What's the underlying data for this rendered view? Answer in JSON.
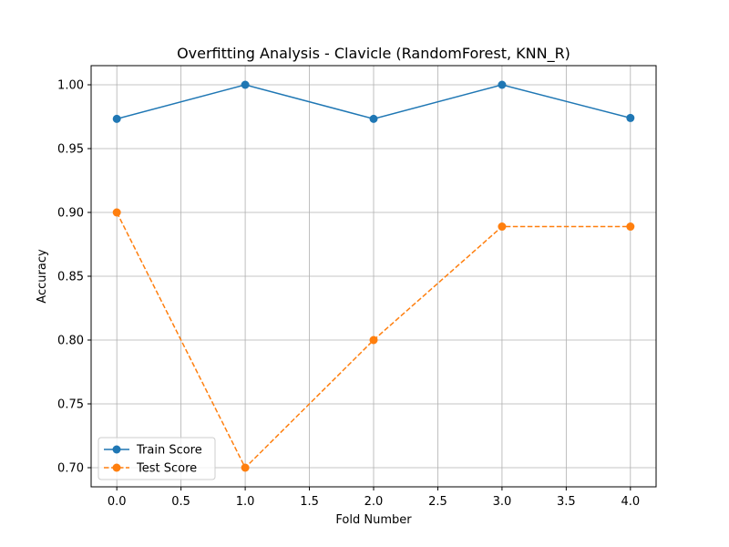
{
  "chart_data": {
    "type": "line",
    "title": "Overfitting Analysis - Clavicle (RandomForest, KNN_R)",
    "xlabel": "Fold Number",
    "ylabel": "Accuracy",
    "xlim": [
      -0.2,
      4.2
    ],
    "ylim": [
      0.685,
      1.015
    ],
    "x_ticks": [
      0.0,
      0.5,
      1.0,
      1.5,
      2.0,
      2.5,
      3.0,
      3.5,
      4.0
    ],
    "x_tick_labels": [
      "0.0",
      "0.5",
      "1.0",
      "1.5",
      "2.0",
      "2.5",
      "3.0",
      "3.5",
      "4.0"
    ],
    "y_ticks": [
      0.7,
      0.75,
      0.8,
      0.85,
      0.9,
      0.95,
      1.0
    ],
    "y_tick_labels": [
      "0.70",
      "0.75",
      "0.80",
      "0.85",
      "0.90",
      "0.95",
      "1.00"
    ],
    "grid": true,
    "legend_position": "lower-left",
    "x": [
      0,
      1,
      2,
      3,
      4
    ],
    "series": [
      {
        "name": "Train Score",
        "values": [
          0.9733,
          1.0,
          0.9733,
          1.0,
          0.974
        ],
        "color": "#1f77b4",
        "line_style": "solid",
        "marker": "circle"
      },
      {
        "name": "Test Score",
        "values": [
          0.9,
          0.7,
          0.8,
          0.8889,
          0.8889
        ],
        "color": "#ff7f0e",
        "line_style": "dashed",
        "marker": "circle"
      }
    ]
  }
}
